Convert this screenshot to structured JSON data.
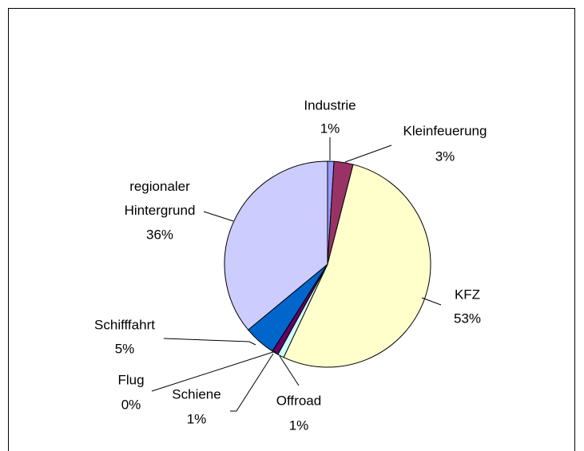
{
  "chart_data": {
    "type": "pie",
    "categories": [
      "Industrie",
      "Kleinfeuerung",
      "KFZ",
      "Offroad",
      "Schiene",
      "Flug",
      "Schifffahrt",
      "regionaler Hintergrund"
    ],
    "values": [
      1,
      3,
      53,
      1,
      1,
      0,
      5,
      36
    ],
    "value_labels": [
      "1%",
      "3%",
      "53%",
      "1%",
      "1%",
      "0%",
      "5%",
      "36%"
    ],
    "colors": [
      "#9999ff",
      "#993366",
      "#ffffcc",
      "#ccffff",
      "#660066",
      "#ff8080",
      "#0066cc",
      "#ccccff"
    ]
  }
}
